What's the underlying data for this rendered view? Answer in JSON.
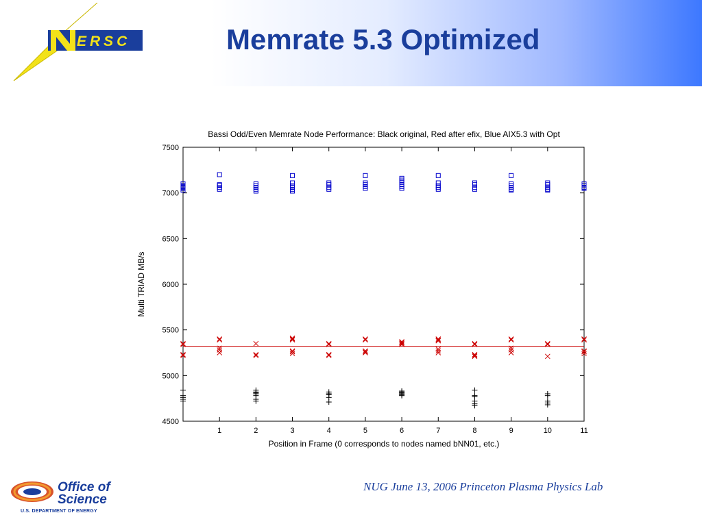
{
  "slide": {
    "title": "Memrate 5.3 Optimized",
    "footer": "NUG June 13, 2006 Princeton Plasma Physics Lab",
    "logo_text": "ERSC",
    "doe_line1": "Office of",
    "doe_line2": "Science",
    "doe_line3": "U.S. DEPARTMENT OF ENERGY"
  },
  "colors": {
    "title": "#1a3e9c",
    "black_series": "#000000",
    "red_series": "#cc0000",
    "blue_series": "#0000cc",
    "header_accent": "#3d78ff"
  },
  "chart_data": {
    "type": "scatter",
    "title": "Bassi Odd/Even Memrate Node Performance: Black original, Red after efix, Blue AIX5.3 with Opt",
    "xlabel": "Position in Frame (0 corresponds to nodes named bNN01, etc.)",
    "ylabel": "Multi TRIAD MB/s",
    "xlim": [
      0,
      11
    ],
    "ylim": [
      4500,
      7500
    ],
    "xticks": [
      1,
      2,
      3,
      4,
      5,
      6,
      7,
      8,
      9,
      10,
      11
    ],
    "yticks": [
      4500,
      5000,
      5500,
      6000,
      6500,
      7000,
      7500
    ],
    "grid": false,
    "series": [
      {
        "name": "Black original",
        "marker": "plus",
        "color": "#000000",
        "points": [
          [
            0,
            4840
          ],
          [
            0,
            4780
          ],
          [
            0,
            4760
          ],
          [
            0,
            4740
          ],
          [
            0,
            4720
          ],
          [
            2,
            4840
          ],
          [
            2,
            4820
          ],
          [
            2,
            4810
          ],
          [
            2,
            4800
          ],
          [
            2,
            4780
          ],
          [
            2,
            4740
          ],
          [
            2,
            4720
          ],
          [
            4,
            4820
          ],
          [
            4,
            4800
          ],
          [
            4,
            4790
          ],
          [
            4,
            4760
          ],
          [
            4,
            4710
          ],
          [
            6,
            4830
          ],
          [
            6,
            4820
          ],
          [
            6,
            4810
          ],
          [
            6,
            4800
          ],
          [
            6,
            4790
          ],
          [
            6,
            4780
          ],
          [
            8,
            4840
          ],
          [
            8,
            4780
          ],
          [
            8,
            4770
          ],
          [
            8,
            4720
          ],
          [
            8,
            4690
          ],
          [
            8,
            4670
          ],
          [
            10,
            4800
          ],
          [
            10,
            4780
          ],
          [
            10,
            4720
          ],
          [
            10,
            4700
          ],
          [
            10,
            4680
          ]
        ]
      },
      {
        "name": "Red after efix",
        "marker": "cross",
        "color": "#cc0000",
        "points": [
          [
            0,
            5350
          ],
          [
            0,
            5340
          ],
          [
            0,
            5230
          ],
          [
            0,
            5220
          ],
          [
            1,
            5400
          ],
          [
            1,
            5390
          ],
          [
            1,
            5300
          ],
          [
            1,
            5280
          ],
          [
            1,
            5250
          ],
          [
            2,
            5350
          ],
          [
            2,
            5230
          ],
          [
            2,
            5220
          ],
          [
            3,
            5410
          ],
          [
            3,
            5400
          ],
          [
            3,
            5390
          ],
          [
            3,
            5270
          ],
          [
            3,
            5260
          ],
          [
            3,
            5240
          ],
          [
            4,
            5350
          ],
          [
            4,
            5340
          ],
          [
            4,
            5230
          ],
          [
            4,
            5220
          ],
          [
            5,
            5400
          ],
          [
            5,
            5390
          ],
          [
            5,
            5270
          ],
          [
            5,
            5260
          ],
          [
            5,
            5250
          ],
          [
            6,
            5370
          ],
          [
            6,
            5360
          ],
          [
            6,
            5350
          ],
          [
            6,
            5340
          ],
          [
            7,
            5400
          ],
          [
            7,
            5390
          ],
          [
            7,
            5380
          ],
          [
            7,
            5290
          ],
          [
            7,
            5270
          ],
          [
            7,
            5250
          ],
          [
            8,
            5350
          ],
          [
            8,
            5340
          ],
          [
            8,
            5230
          ],
          [
            8,
            5220
          ],
          [
            8,
            5210
          ],
          [
            9,
            5400
          ],
          [
            9,
            5390
          ],
          [
            9,
            5300
          ],
          [
            9,
            5280
          ],
          [
            9,
            5250
          ],
          [
            10,
            5350
          ],
          [
            10,
            5340
          ],
          [
            10,
            5210
          ],
          [
            11,
            5400
          ],
          [
            11,
            5390
          ],
          [
            11,
            5270
          ],
          [
            11,
            5260
          ],
          [
            11,
            5240
          ]
        ]
      },
      {
        "name": "Blue AIX5.3 with Opt",
        "marker": "square",
        "color": "#0000cc",
        "points": [
          [
            0,
            7100
          ],
          [
            0,
            7080
          ],
          [
            0,
            7070
          ],
          [
            0,
            7060
          ],
          [
            0,
            7050
          ],
          [
            0,
            7030
          ],
          [
            1,
            7200
          ],
          [
            1,
            7090
          ],
          [
            1,
            7080
          ],
          [
            1,
            7060
          ],
          [
            1,
            7040
          ],
          [
            2,
            7100
          ],
          [
            2,
            7080
          ],
          [
            2,
            7060
          ],
          [
            2,
            7040
          ],
          [
            2,
            7020
          ],
          [
            3,
            7190
          ],
          [
            3,
            7110
          ],
          [
            3,
            7080
          ],
          [
            3,
            7060
          ],
          [
            3,
            7040
          ],
          [
            3,
            7020
          ],
          [
            4,
            7110
          ],
          [
            4,
            7090
          ],
          [
            4,
            7060
          ],
          [
            4,
            7040
          ],
          [
            5,
            7190
          ],
          [
            5,
            7110
          ],
          [
            5,
            7090
          ],
          [
            5,
            7070
          ],
          [
            5,
            7050
          ],
          [
            6,
            7160
          ],
          [
            6,
            7140
          ],
          [
            6,
            7120
          ],
          [
            6,
            7090
          ],
          [
            6,
            7070
          ],
          [
            6,
            7050
          ],
          [
            7,
            7190
          ],
          [
            7,
            7110
          ],
          [
            7,
            7080
          ],
          [
            7,
            7060
          ],
          [
            7,
            7040
          ],
          [
            8,
            7110
          ],
          [
            8,
            7090
          ],
          [
            8,
            7060
          ],
          [
            8,
            7040
          ],
          [
            9,
            7190
          ],
          [
            9,
            7100
          ],
          [
            9,
            7080
          ],
          [
            9,
            7060
          ],
          [
            9,
            7040
          ],
          [
            9,
            7030
          ],
          [
            10,
            7110
          ],
          [
            10,
            7090
          ],
          [
            10,
            7060
          ],
          [
            10,
            7040
          ],
          [
            10,
            7030
          ],
          [
            11,
            7100
          ],
          [
            11,
            7080
          ],
          [
            11,
            7060
          ],
          [
            11,
            7050
          ]
        ]
      }
    ],
    "reference_line": {
      "y": 5320,
      "color": "#cc0000"
    }
  }
}
